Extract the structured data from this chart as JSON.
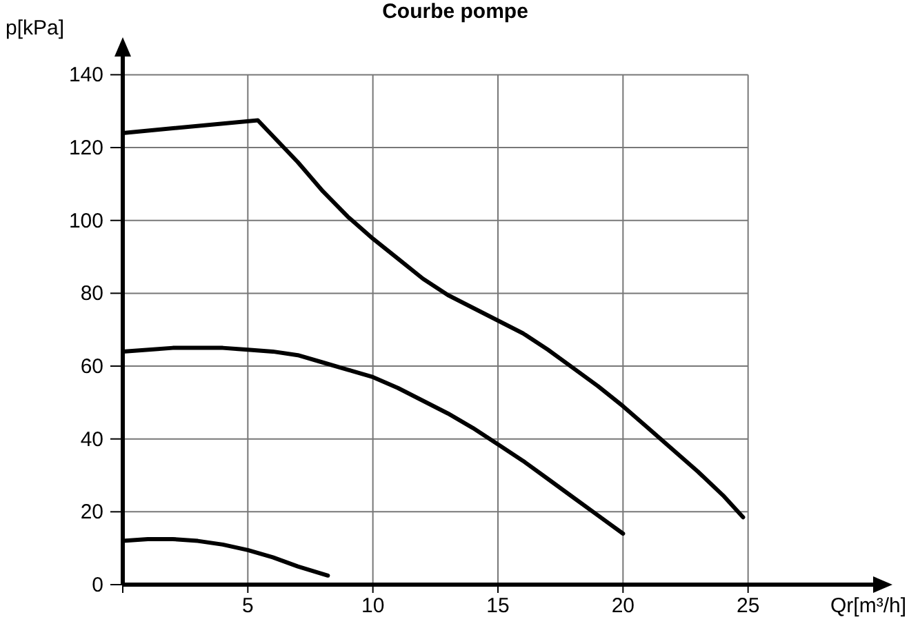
{
  "chart_data": {
    "type": "line",
    "title": "Courbe pompe",
    "xlabel": "Qr[m³/h]",
    "ylabel": "p[kPa]",
    "xlim": [
      0,
      30
    ],
    "ylim": [
      0,
      145
    ],
    "xticks": [
      {
        "value": 0,
        "label": null
      },
      5,
      10,
      15,
      20,
      25
    ],
    "yticks": [
      0,
      20,
      40,
      60,
      80,
      100,
      120,
      140
    ],
    "grid": true,
    "marker": "none",
    "line_style": "solid",
    "series": [
      {
        "color": "#000000",
        "x": [
          0,
          5.4,
          7,
          8,
          9,
          10,
          11,
          12,
          13,
          14,
          15,
          16,
          17,
          18,
          19,
          20,
          21,
          22,
          23,
          24,
          24.8
        ],
        "values": [
          124,
          127.5,
          116,
          108,
          101,
          95,
          89.5,
          84,
          79.5,
          76,
          72.5,
          69,
          64.5,
          59.5,
          54.5,
          49,
          43,
          37,
          31,
          24.5,
          18.5
        ]
      },
      {
        "color": "#000000",
        "x": [
          0,
          2,
          4,
          5,
          6,
          7,
          8,
          9,
          10,
          11,
          12,
          13,
          14,
          15,
          16,
          17,
          18,
          19,
          20
        ],
        "values": [
          64,
          65,
          65,
          64.5,
          64,
          63,
          61,
          59,
          57,
          54,
          50.5,
          47,
          43,
          38.5,
          34,
          29,
          24,
          19,
          14
        ]
      },
      {
        "color": "#000000",
        "x": [
          0,
          1,
          2,
          3,
          4,
          5,
          6,
          7,
          8.2
        ],
        "values": [
          12,
          12.5,
          12.5,
          12,
          11,
          9.5,
          7.5,
          5,
          2.5
        ]
      }
    ]
  }
}
